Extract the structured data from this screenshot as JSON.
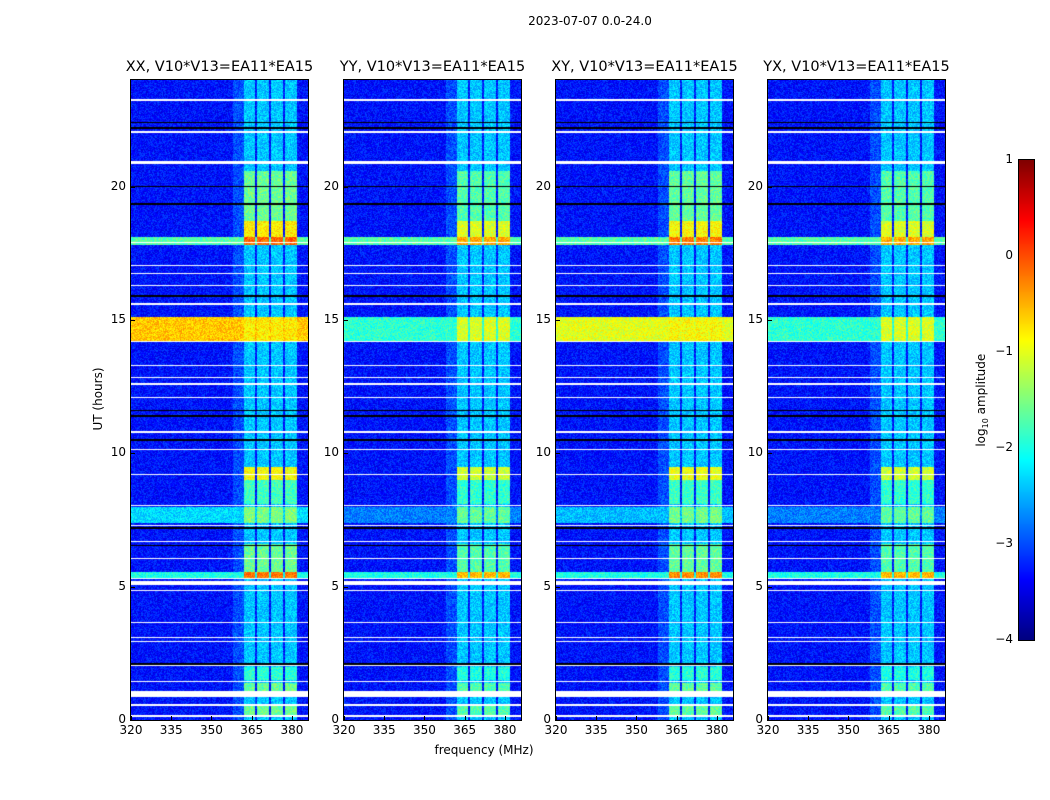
{
  "chart_data": {
    "type": "heatmap",
    "suptitle": "2023-07-07 0.0-24.0",
    "xlabel": "frequency (MHz)",
    "ylabel": "UT (hours)",
    "xlim": [
      320,
      386
    ],
    "ylim": [
      0,
      24
    ],
    "xticks": [
      320,
      335,
      350,
      365,
      380
    ],
    "yticks": [
      0,
      5,
      10,
      15,
      20
    ],
    "colorbar": {
      "label": "log10 amplitude",
      "label_main": "log",
      "label_sub": "10",
      "label_rest": " amplitude",
      "range": [
        -4,
        1
      ],
      "ticks": [
        1,
        0,
        -1,
        -2,
        -3,
        -4
      ],
      "tick_labels": [
        "1",
        "0",
        "−1",
        "−2",
        "−3",
        "−4"
      ],
      "colormap": "jet"
    },
    "panels": [
      {
        "title": "XX, V10*V13=EA11*EA15",
        "gain": 1.0,
        "broadband_1415": -0.6
      },
      {
        "title": "YY, V10*V13=EA11*EA15",
        "gain": 0.85,
        "broadband_1415": -1.9
      },
      {
        "title": "XY, V10*V13=EA11*EA15",
        "gain": 0.95,
        "broadband_1415": -1.0
      },
      {
        "title": "YX, V10*V13=EA11*EA15",
        "gain": 0.85,
        "broadband_1415": -1.9
      }
    ],
    "background_level": -3.3,
    "band_level": -2.4,
    "subbands_mhz": [
      [
        362,
        366.2
      ],
      [
        367,
        371.4
      ],
      [
        372.2,
        376.6
      ],
      [
        377.4,
        381.8
      ]
    ],
    "events": [
      {
        "t": [
          0.15,
          0.55
        ],
        "band_only": true,
        "level": -1.6
      },
      {
        "t": [
          1.1,
          1.4
        ],
        "band_only": true,
        "level": -1.6
      },
      {
        "t": [
          1.5,
          2.0
        ],
        "band_only": true,
        "level": -1.9
      },
      {
        "t": [
          5.3,
          5.55
        ],
        "band_only": false,
        "level": -0.2,
        "broad": -2.0
      },
      {
        "t": [
          5.55,
          6.6
        ],
        "band_only": true,
        "level": -1.6
      },
      {
        "t": [
          7.4,
          8.0
        ],
        "band_only": true,
        "level": -1.5,
        "broad": -2.3
      },
      {
        "t": [
          8.1,
          9.0
        ],
        "band_only": true,
        "level": -1.8
      },
      {
        "t": [
          9.0,
          9.5
        ],
        "band_only": true,
        "level": -0.9
      },
      {
        "t": [
          14.2,
          15.1
        ],
        "band_only": false,
        "level": -0.8,
        "broad": "panel"
      },
      {
        "t": [
          17.8,
          18.1
        ],
        "band_only": false,
        "level": -0.1,
        "broad": -1.7
      },
      {
        "t": [
          18.1,
          18.7
        ],
        "band_only": true,
        "level": -0.8
      },
      {
        "t": [
          18.7,
          20.6
        ],
        "band_only": true,
        "level": -1.6
      }
    ],
    "flagged_hours": [
      [
        0.12,
        0.2
      ],
      [
        0.52,
        0.6
      ],
      [
        0.88,
        1.08
      ],
      [
        1.42,
        1.48
      ],
      [
        2.03,
        2.08
      ],
      [
        2.93,
        2.98
      ],
      [
        3.08,
        3.13
      ],
      [
        3.63,
        3.68
      ],
      [
        4.82,
        4.88
      ],
      [
        5.08,
        5.22
      ],
      [
        5.28,
        5.33
      ],
      [
        6.03,
        6.08
      ],
      [
        6.68,
        6.73
      ],
      [
        7.28,
        7.33
      ],
      [
        8.03,
        8.08
      ],
      [
        9.18,
        9.23
      ],
      [
        10.13,
        10.18
      ],
      [
        10.78,
        10.83
      ],
      [
        12.08,
        12.13
      ],
      [
        12.58,
        12.63
      ],
      [
        12.83,
        12.88
      ],
      [
        13.28,
        13.33
      ],
      [
        14.18,
        14.23
      ],
      [
        15.58,
        15.63
      ],
      [
        16.28,
        16.33
      ],
      [
        16.73,
        16.78
      ],
      [
        17.03,
        17.08
      ],
      [
        17.88,
        17.93
      ],
      [
        20.85,
        20.98
      ],
      [
        22.03,
        22.08
      ],
      [
        23.22,
        23.28
      ]
    ],
    "dead_hours": [
      [
        2.08,
        2.13
      ],
      [
        6.53,
        6.57
      ],
      [
        7.18,
        7.22
      ],
      [
        10.48,
        10.52
      ],
      [
        11.38,
        11.42
      ],
      [
        11.58,
        11.62
      ],
      [
        15.88,
        15.92
      ],
      [
        19.33,
        19.37
      ],
      [
        19.98,
        20.02
      ],
      [
        22.18,
        22.22
      ],
      [
        22.38,
        22.42
      ]
    ]
  }
}
